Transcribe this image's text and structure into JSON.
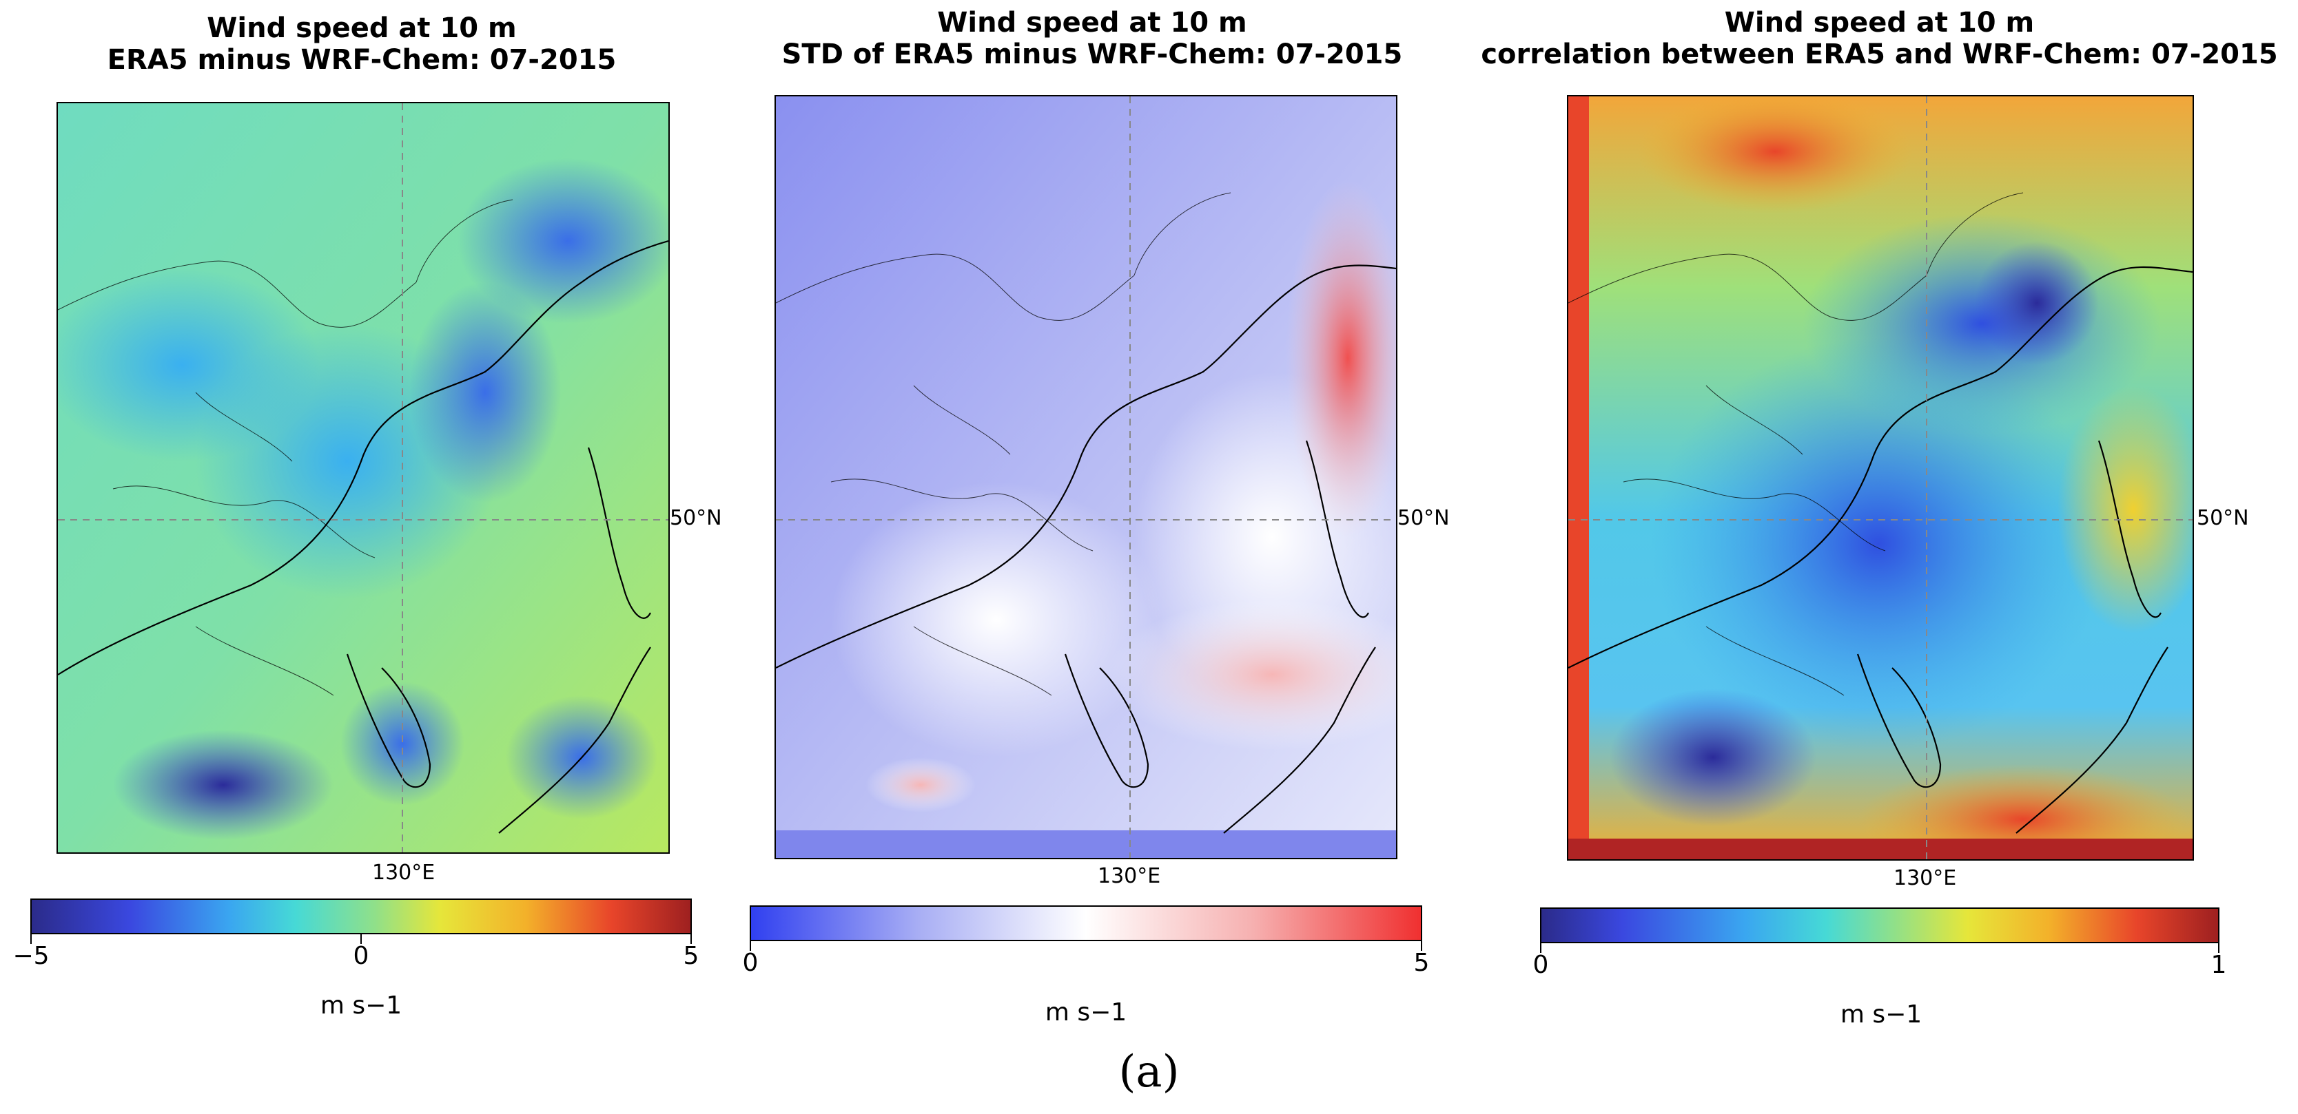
{
  "colors": {
    "jet": [
      "#2b2b8a",
      "#3a48e0",
      "#3aa6f0",
      "#46d9d6",
      "#8fe08a",
      "#d6e63a",
      "#f3b12a",
      "#e8452a",
      "#9e2020"
    ],
    "bwr": [
      "#3040f0",
      "#d8dcf8",
      "#ffffff",
      "#f8d0d0",
      "#f03030"
    ],
    "grid_line": "#888888",
    "coast": "#000000"
  },
  "panels": [
    {
      "title_line1": "Wind speed at 10 m",
      "title_line2": "ERA5 minus WRF-Chem: 07-2015",
      "lon_label": "130°E",
      "lat_label": "50°N",
      "colorbar": {
        "min_label": "−5",
        "mid_label": "0",
        "max_label": "5",
        "unit": "m s−1"
      }
    },
    {
      "title_line1": "Wind speed at 10 m",
      "title_line2": "STD of ERA5 minus WRF-Chem: 07-2015",
      "lon_label": "130°E",
      "lat_label": "50°N",
      "colorbar": {
        "min_label": "0",
        "max_label": "5",
        "unit": "m s−1"
      }
    },
    {
      "title_line1": "Wind speed at 10 m",
      "title_line2": "correlation between ERA5 and WRF-Chem: 07-2015",
      "lon_label": "130°E",
      "lat_label": "50°N",
      "colorbar": {
        "min_label": "0",
        "max_label": "1",
        "unit": "m s−1"
      }
    }
  ],
  "figure_label": "(a)"
}
